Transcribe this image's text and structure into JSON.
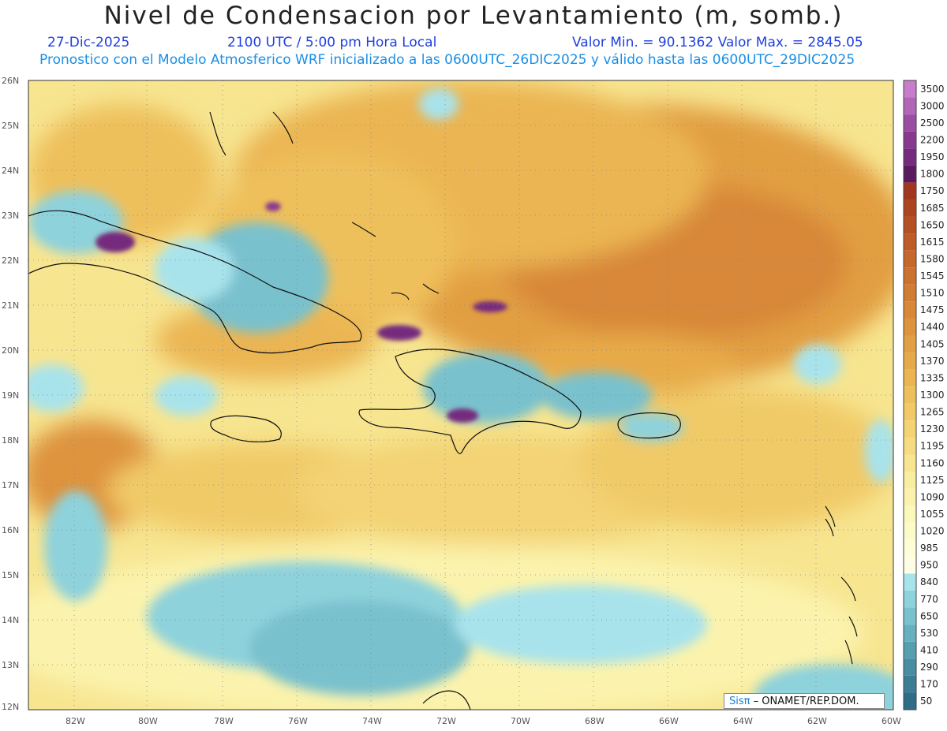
{
  "header": {
    "title": "Nivel de Condensacion por Levantamiento (m, somb.)",
    "date": "27-Dic-2025",
    "time": "2100 UTC / 5:00 pm Hora Local",
    "minmax": "Valor Min. = 90.1362  Valor Max. = 2845.05",
    "model_info": "Pronostico con el Modelo Atmosferico WRF inicializado a las 0600UTC_26DIC2025 y válido hasta las  0600UTC_29DIC2025"
  },
  "map": {
    "lat_labels": [
      "26N",
      "25N",
      "24N",
      "23N",
      "22N",
      "21N",
      "20N",
      "19N",
      "18N",
      "17N",
      "16N",
      "15N",
      "14N",
      "13N",
      "12N"
    ],
    "lon_labels": [
      "82W",
      "80W",
      "78W",
      "76W",
      "74W",
      "72W",
      "70W",
      "68W",
      "66W",
      "64W",
      "62W",
      "60W"
    ],
    "extent": {
      "lon_min": -83.2,
      "lon_max": -60,
      "lat_min": 11.95,
      "lat_max": 26.1
    },
    "units": "m",
    "field_range": {
      "min": 90.1362,
      "max": 2845.05
    }
  },
  "colorbar": {
    "levels": [
      "3500",
      "3000",
      "2500",
      "2200",
      "1950",
      "1800",
      "1750",
      "1685",
      "1650",
      "1615",
      "1580",
      "1545",
      "1510",
      "1475",
      "1440",
      "1405",
      "1370",
      "1335",
      "1300",
      "1265",
      "1230",
      "1195",
      "1160",
      "1125",
      "1090",
      "1055",
      "1020",
      "985",
      "950",
      "840",
      "770",
      "650",
      "530",
      "410",
      "290",
      "170",
      "50"
    ],
    "colors": [
      "#c77dc9",
      "#b366b8",
      "#9a4ea3",
      "#88398f",
      "#742a7d",
      "#5a1a5e",
      "#a1381f",
      "#ad4420",
      "#b54f24",
      "#be5b28",
      "#c6672c",
      "#cc7230",
      "#d27d34",
      "#d88838",
      "#de933d",
      "#e29f43",
      "#e7aa4a",
      "#ebb552",
      "#eec05c",
      "#f1ca67",
      "#f3d374",
      "#f5dc82",
      "#f7e590",
      "#f9ed9f",
      "#fbf3ad",
      "#fcf8bb",
      "#fdfcc9",
      "#fefed6",
      "#fffee4",
      "#a8e3ec",
      "#8ed2dc",
      "#79c1cd",
      "#66b0bf",
      "#569fb1",
      "#488ea3",
      "#3c7d95",
      "#2f6c86"
    ]
  },
  "credit": {
    "brand": "Sisπ",
    "text": "– ONAMET/REP.DOM."
  }
}
